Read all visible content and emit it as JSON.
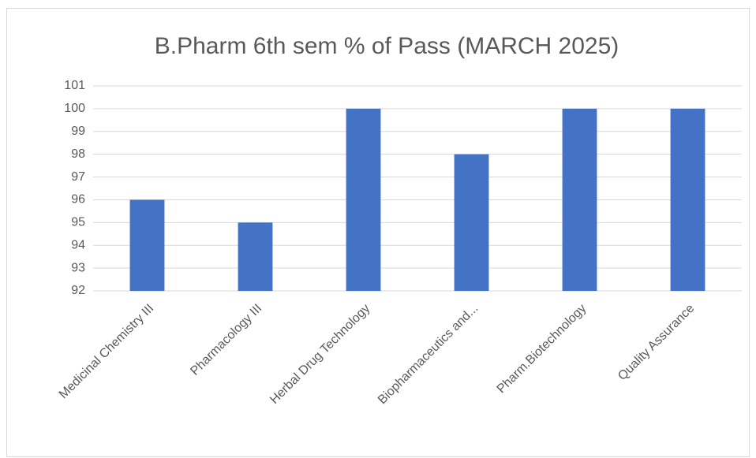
{
  "chart_data": {
    "type": "bar",
    "title": "B.Pharm 6th sem % of Pass (MARCH 2025)",
    "categories": [
      "Medicinal Chemistry III",
      "Pharmacology III",
      "Herbal Drug Technology",
      "Biopharmaceutics and...",
      "Pharm.Biotechnology",
      "Quality Assurance"
    ],
    "values": [
      96,
      95,
      100,
      98,
      100,
      100
    ],
    "color": "#4472c4",
    "ylim": [
      92,
      101
    ],
    "yticks": [
      92,
      93,
      94,
      95,
      96,
      97,
      98,
      99,
      100,
      101
    ],
    "grid": true
  }
}
